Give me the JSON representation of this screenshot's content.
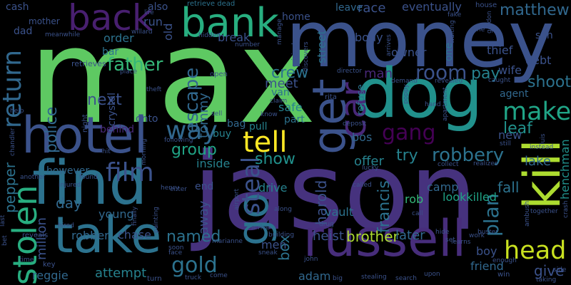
{
  "background": "#000000",
  "words": [
    {
      "text": "max",
      "color": "#5ec962",
      "vertical": false
    },
    {
      "text": "jason",
      "color": "#46327e",
      "vertical": false
    },
    {
      "text": "money",
      "color": "#3b528b",
      "vertical": false
    },
    {
      "text": "dog",
      "color": "#21918c",
      "vertical": false
    },
    {
      "text": "find",
      "color": "#2c728e",
      "vertical": false
    },
    {
      "text": "hotel",
      "color": "#3b528b",
      "vertical": false
    },
    {
      "text": "take",
      "color": "#2c728e",
      "vertical": false
    },
    {
      "text": "russell",
      "color": "#472d7b",
      "vertical": false
    },
    {
      "text": "get",
      "color": "#3b528b",
      "vertical": true
    },
    {
      "text": "kill",
      "color": "#addc30",
      "vertical": true
    },
    {
      "text": "back",
      "color": "#481f70",
      "vertical": false
    },
    {
      "text": "bank",
      "color": "#28ae80",
      "vertical": false
    },
    {
      "text": "go",
      "color": "#2c728e",
      "vertical": true
    },
    {
      "text": "head",
      "color": "#c8e020",
      "vertical": false
    },
    {
      "text": "tell",
      "color": "#fde725",
      "vertical": false
    },
    {
      "text": "gang",
      "color": "#440154",
      "vertical": false
    },
    {
      "text": "car",
      "color": "#482878",
      "vertical": true
    },
    {
      "text": "stolen",
      "color": "#28ae80",
      "vertical": true
    },
    {
      "text": "film",
      "color": "#3b528b",
      "vertical": false
    },
    {
      "text": "make",
      "color": "#20a486",
      "vertical": false
    },
    {
      "text": "way",
      "color": "#31688e",
      "vertical": false
    },
    {
      "text": "room",
      "color": "#3b528b",
      "vertical": false
    },
    {
      "text": "steal",
      "color": "#3b528b",
      "vertical": true
    },
    {
      "text": "gold",
      "color": "#2c728e",
      "vertical": false
    },
    {
      "text": "return",
      "color": "#31688e",
      "vertical": true
    },
    {
      "text": "father",
      "color": "#35b779",
      "vertical": false
    },
    {
      "text": "group",
      "color": "#20a486",
      "vertical": false
    },
    {
      "text": "robbery",
      "color": "#2c728e",
      "vertical": false
    },
    {
      "text": "show",
      "color": "#21918c",
      "vertical": false
    },
    {
      "text": "pay",
      "color": "#26828e",
      "vertical": false
    },
    {
      "text": "named",
      "color": "#2c728e",
      "vertical": false
    },
    {
      "text": "escape",
      "color": "#31688e",
      "vertical": true
    },
    {
      "text": "crew",
      "color": "#2c728e",
      "vertical": false
    },
    {
      "text": "man",
      "color": "#482878",
      "vertical": false
    },
    {
      "text": "try",
      "color": "#26828e",
      "vertical": false
    },
    {
      "text": "shoot",
      "color": "#2c728e",
      "vertical": false
    },
    {
      "text": "plan",
      "color": "#2c728e",
      "vertical": true
    },
    {
      "text": "meet",
      "color": "#3b528b",
      "vertical": false
    },
    {
      "text": "fall",
      "color": "#2c728e",
      "vertical": false
    },
    {
      "text": "give",
      "color": "#3b528b",
      "vertical": false
    },
    {
      "text": "leaf",
      "color": "#21918c",
      "vertical": false
    },
    {
      "text": "matthew",
      "color": "#31688e",
      "vertical": false
    },
    {
      "text": "harold",
      "color": "#3b528b",
      "vertical": true
    },
    {
      "text": "francis",
      "color": "#2c728e",
      "vertical": true
    },
    {
      "text": "henchman",
      "color": "#21918c",
      "vertical": true
    },
    {
      "text": "day",
      "color": "#31688e",
      "vertical": false
    },
    {
      "text": "next",
      "color": "#3b528b",
      "vertical": false
    },
    {
      "text": "police",
      "color": "#31688e",
      "vertical": true
    },
    {
      "text": "attempt",
      "color": "#26828e",
      "vertical": false
    },
    {
      "text": "away",
      "color": "#3b528b",
      "vertical": true
    },
    {
      "text": "box",
      "color": "#2c728e",
      "vertical": true
    },
    {
      "text": "brother",
      "color": "#addc30",
      "vertical": false
    },
    {
      "text": "million",
      "color": "#3b528b",
      "vertical": true
    },
    {
      "text": "crystal",
      "color": "#3b528b",
      "vertical": true
    },
    {
      "text": "pepper",
      "color": "#2c728e",
      "vertical": true
    },
    {
      "text": "tommy",
      "color": "#31688e",
      "vertical": true
    },
    {
      "text": "lake",
      "color": "#31688e",
      "vertical": false
    },
    {
      "text": "offer",
      "color": "#26828e",
      "vertical": false
    },
    {
      "text": "drive",
      "color": "#26828e",
      "vertical": false
    },
    {
      "text": "heist",
      "color": "#3b528b",
      "vertical": false
    },
    {
      "text": "end",
      "color": "#3b528b",
      "vertical": false
    },
    {
      "text": "inside",
      "color": "#26828e",
      "vertical": false
    },
    {
      "text": "vault",
      "color": "#2c728e",
      "vertical": false
    },
    {
      "text": "bos",
      "color": "#31688e",
      "vertical": false
    },
    {
      "text": "pull",
      "color": "#26828e",
      "vertical": false
    },
    {
      "text": "bag",
      "color": "#31688e",
      "vertical": false
    },
    {
      "text": "buy",
      "color": "#26828e",
      "vertical": false
    },
    {
      "text": "later",
      "color": "#31688e",
      "vertical": false
    },
    {
      "text": "rob",
      "color": "#35b779",
      "vertical": false
    },
    {
      "text": "camp",
      "color": "#31688e",
      "vertical": false
    },
    {
      "text": "lookkilled",
      "color": "#20a486",
      "vertical": false
    },
    {
      "text": "men",
      "color": "#3b528b",
      "vertical": false
    },
    {
      "text": "young",
      "color": "#31688e",
      "vertical": false
    },
    {
      "text": "chase",
      "color": "#3b528b",
      "vertical": false
    },
    {
      "text": "robber",
      "color": "#31688e",
      "vertical": false
    },
    {
      "text": "reggie",
      "color": "#31688e",
      "vertical": false
    },
    {
      "text": "adam",
      "color": "#31688e",
      "vertical": false
    },
    {
      "text": "boy",
      "color": "#3b528b",
      "vertical": false
    },
    {
      "text": "friend",
      "color": "#31688e",
      "vertical": false
    },
    {
      "text": "debt",
      "color": "#3b528b",
      "vertical": false
    },
    {
      "text": "thief",
      "color": "#3b528b",
      "vertical": false
    },
    {
      "text": "owner",
      "color": "#3b528b",
      "vertical": false
    },
    {
      "text": "wife",
      "color": "#3b528b",
      "vertical": false
    },
    {
      "text": "agent",
      "color": "#31688e",
      "vertical": false
    },
    {
      "text": "new",
      "color": "#3b528b",
      "vertical": false
    },
    {
      "text": "street",
      "color": "#2c728e",
      "vertical": true
    },
    {
      "text": "refuse",
      "color": "#2c728e",
      "vertical": true
    },
    {
      "text": "van",
      "color": "#2c728e",
      "vertical": false
    },
    {
      "text": "safe",
      "color": "#26828e",
      "vertical": false
    },
    {
      "text": "part",
      "color": "#2c728e",
      "vertical": false
    },
    {
      "text": "order",
      "color": "#2c728e",
      "vertical": false
    },
    {
      "text": "bar",
      "color": "#2c728e",
      "vertical": false
    },
    {
      "text": "behind",
      "color": "#482878",
      "vertical": false
    },
    {
      "text": "however",
      "color": "#31688e",
      "vertical": false
    },
    {
      "text": "onto",
      "color": "#3b528b",
      "vertical": false
    },
    {
      "text": "break",
      "color": "#3b528b",
      "vertical": false
    },
    {
      "text": "body",
      "color": "#3b528b",
      "vertical": false
    },
    {
      "text": "home",
      "color": "#3b528b",
      "vertical": false
    },
    {
      "text": "race",
      "color": "#3b528b",
      "vertical": false
    },
    {
      "text": "leave",
      "color": "#31688e",
      "vertical": false
    },
    {
      "text": "eventually",
      "color": "#3b528b",
      "vertical": false
    },
    {
      "text": "cash",
      "color": "#3b528b",
      "vertical": false
    },
    {
      "text": "dad",
      "color": "#3b528b",
      "vertical": false
    },
    {
      "text": "also",
      "color": "#3b528b",
      "vertical": false
    },
    {
      "text": "run",
      "color": "#3b528b",
      "vertical": false
    },
    {
      "text": "old",
      "color": "#3b528b",
      "vertical": true
    },
    {
      "text": "one",
      "color": "#2c728e",
      "vertical": true
    },
    {
      "text": "son",
      "color": "#3b528b",
      "vertical": false
    },
    {
      "text": "mother",
      "color": "#3b528b",
      "vertical": false
    },
    {
      "text": "retrieves",
      "color": "#3b528b",
      "vertical": false
    },
    {
      "text": "retrieve dead",
      "color": "#2c728e",
      "vertical": false
    },
    {
      "text": "life",
      "color": "#3b528b",
      "vertical": false
    },
    {
      "text": "meanwhile",
      "color": "#3b528b",
      "vertical": false
    },
    {
      "text": "willard",
      "color": "#3b528b",
      "vertical": false
    },
    {
      "text": "hidden",
      "color": "#3b528b",
      "vertical": false
    },
    {
      "text": "open",
      "color": "#3b528b",
      "vertical": false
    },
    {
      "text": "number",
      "color": "#3b528b",
      "vertical": false
    },
    {
      "text": "original",
      "color": "#3b528b",
      "vertical": true
    },
    {
      "text": "discovers",
      "color": "#3b528b",
      "vertical": true
    },
    {
      "text": "arrives",
      "color": "#3b528b",
      "vertical": true
    },
    {
      "text": "manage",
      "color": "#3b528b",
      "vertical": true
    },
    {
      "text": "director",
      "color": "#3b528b",
      "vertical": false
    },
    {
      "text": "rita",
      "color": "#3b528b",
      "vertical": false
    },
    {
      "text": "demand",
      "color": "#3b528b",
      "vertical": false
    },
    {
      "text": "revealed",
      "color": "#3b528b",
      "vertical": false
    },
    {
      "text": "caught",
      "color": "#3b528b",
      "vertical": false
    },
    {
      "text": "fake",
      "color": "#3b528b",
      "vertical": false
    },
    {
      "text": "house",
      "color": "#3b528b",
      "vertical": false
    },
    {
      "text": "line",
      "color": "#3b528b",
      "vertical": false
    },
    {
      "text": "gordon",
      "color": "#3b528b",
      "vertical": true
    },
    {
      "text": "waiting",
      "color": "#3b528b",
      "vertical": true
    },
    {
      "text": "theft",
      "color": "#3b528b",
      "vertical": false
    },
    {
      "text": "place",
      "color": "#3b528b",
      "vertical": false
    },
    {
      "text": "sell",
      "color": "#3b528b",
      "vertical": false
    },
    {
      "text": "claim",
      "color": "#3b528b",
      "vertical": false
    },
    {
      "text": "know",
      "color": "#3b528b",
      "vertical": false
    },
    {
      "text": "deposit",
      "color": "#3b528b",
      "vertical": false
    },
    {
      "text": "hand",
      "color": "#3b528b",
      "vertical": false
    },
    {
      "text": "apartment",
      "color": "#3b528b",
      "vertical": true
    },
    {
      "text": "poppy",
      "color": "#3b528b",
      "vertical": true
    },
    {
      "text": "help",
      "color": "#3b528b",
      "vertical": false
    },
    {
      "text": "night",
      "color": "#3b528b",
      "vertical": true
    },
    {
      "text": "morning",
      "color": "#3b528b",
      "vertical": true
    },
    {
      "text": "following",
      "color": "#3b528b",
      "vertical": false
    },
    {
      "text": "hit",
      "color": "#3b528b",
      "vertical": false
    },
    {
      "text": "chandler",
      "color": "#3b528b",
      "vertical": true
    },
    {
      "text": "another",
      "color": "#3b528b",
      "vertical": false
    },
    {
      "text": "injured",
      "color": "#3b528b",
      "vertical": false
    },
    {
      "text": "found",
      "color": "#3b528b",
      "vertical": false
    },
    {
      "text": "henry",
      "color": "#3b528b",
      "vertical": false
    },
    {
      "text": "enter",
      "color": "#3b528b",
      "vertical": false
    },
    {
      "text": "airport",
      "color": "#3b528b",
      "vertical": true
    },
    {
      "text": "called",
      "color": "#3b528b",
      "vertical": false
    },
    {
      "text": "lucky",
      "color": "#3b528b",
      "vertical": false
    },
    {
      "text": "collect",
      "color": "#3b528b",
      "vertical": false
    },
    {
      "text": "realizes",
      "color": "#3b528b",
      "vertical": false
    },
    {
      "text": "instead",
      "color": "#3b528b",
      "vertical": false
    },
    {
      "text": "still",
      "color": "#3b528b",
      "vertical": false
    },
    {
      "text": "luis",
      "color": "#3b528b",
      "vertical": true
    },
    {
      "text": "reveals",
      "color": "#3b528b",
      "vertical": false
    },
    {
      "text": "painting",
      "color": "#3b528b",
      "vertical": true
    },
    {
      "text": "finally",
      "color": "#3b528b",
      "vertical": true
    },
    {
      "text": "hired",
      "color": "#3b528b",
      "vertical": false
    },
    {
      "text": "marianne",
      "color": "#3b528b",
      "vertical": false
    },
    {
      "text": "arrive",
      "color": "#3b528b",
      "vertical": false
    },
    {
      "text": "along",
      "color": "#3b528b",
      "vertical": false
    },
    {
      "text": "drug",
      "color": "#3b528b",
      "vertical": false
    },
    {
      "text": "call",
      "color": "#3b528b",
      "vertical": false
    },
    {
      "text": "hide",
      "color": "#3b528b",
      "vertical": false
    },
    {
      "text": "set",
      "color": "#3b528b",
      "vertical": false
    },
    {
      "text": "learns",
      "color": "#3b528b",
      "vertical": false
    },
    {
      "text": "work",
      "color": "#3b528b",
      "vertical": false
    },
    {
      "text": "enough",
      "color": "#3b528b",
      "vertical": false
    },
    {
      "text": "ambush",
      "color": "#3b528b",
      "vertical": true
    },
    {
      "text": "together",
      "color": "#3b528b",
      "vertical": false
    },
    {
      "text": "buster",
      "color": "#3b528b",
      "vertical": false
    },
    {
      "text": "crash",
      "color": "#3b528b",
      "vertical": true
    },
    {
      "text": "last",
      "color": "#3b528b",
      "vertical": true
    },
    {
      "text": "bet",
      "color": "#3b528b",
      "vertical": true
    },
    {
      "text": "time",
      "color": "#3b528b",
      "vertical": false
    },
    {
      "text": "key",
      "color": "#3b528b",
      "vertical": false
    },
    {
      "text": "soon",
      "color": "#3b528b",
      "vertical": false
    },
    {
      "text": "face",
      "color": "#3b528b",
      "vertical": false
    },
    {
      "text": "turn",
      "color": "#3b528b",
      "vertical": false
    },
    {
      "text": "come",
      "color": "#3b528b",
      "vertical": false
    },
    {
      "text": "truck",
      "color": "#3b528b",
      "vertical": false
    },
    {
      "text": "building",
      "color": "#3b528b",
      "vertical": false
    },
    {
      "text": "sneak",
      "color": "#3b528b",
      "vertical": false
    },
    {
      "text": "john",
      "color": "#3b528b",
      "vertical": false
    },
    {
      "text": "big",
      "color": "#3b528b",
      "vertical": false
    },
    {
      "text": "stealing",
      "color": "#3b528b",
      "vertical": false
    },
    {
      "text": "search",
      "color": "#3b528b",
      "vertical": false
    },
    {
      "text": "upon",
      "color": "#3b528b",
      "vertical": false
    },
    {
      "text": "win",
      "color": "#3b528b",
      "vertical": false
    },
    {
      "text": "taking",
      "color": "#3b528b",
      "vertical": false
    },
    {
      "text": "side",
      "color": "#3b528b",
      "vertical": false
    }
  ]
}
